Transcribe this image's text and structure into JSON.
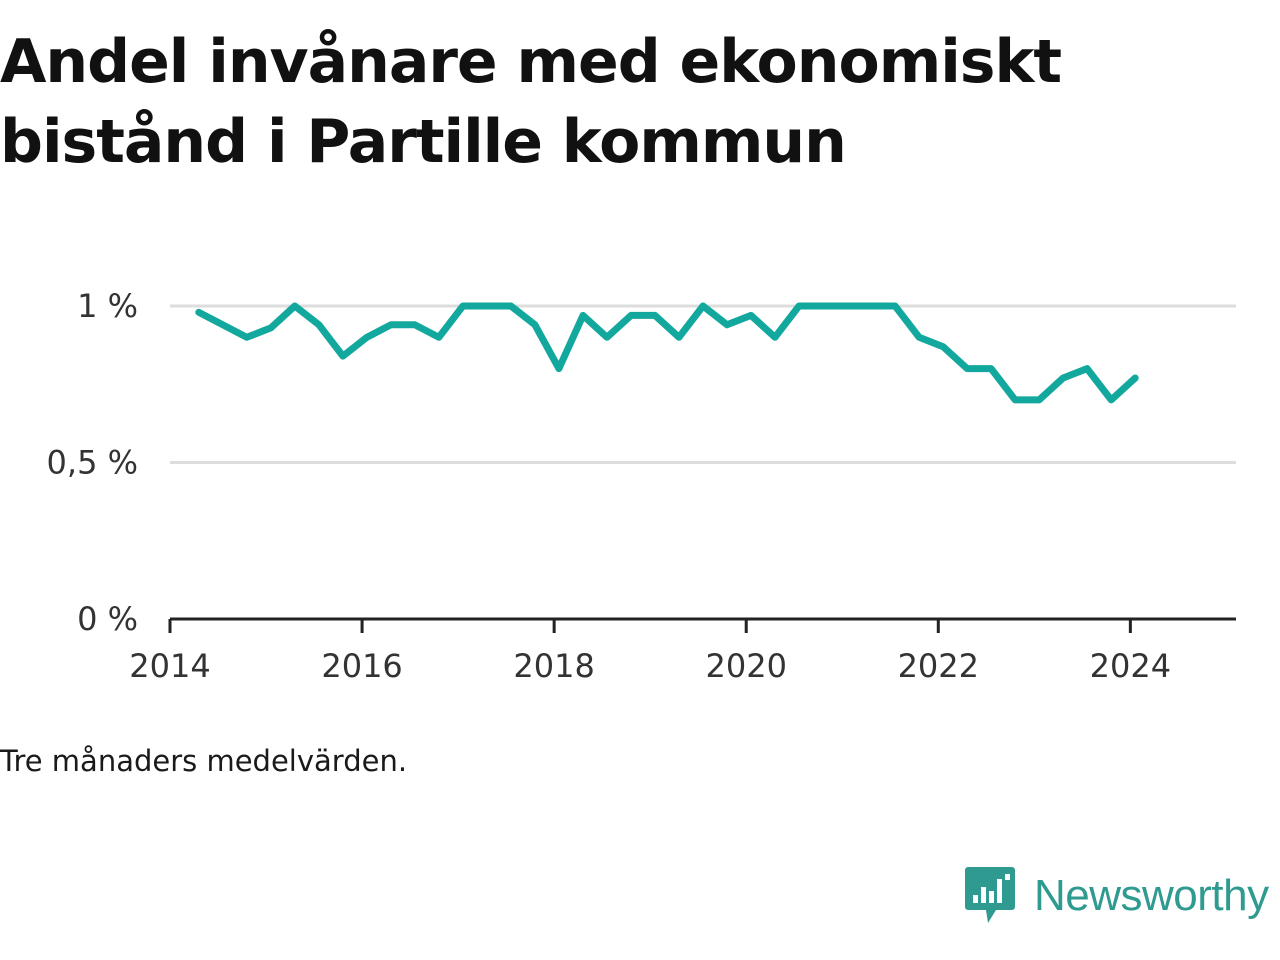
{
  "title": "Andel invånare med ekonomiskt bistånd i Partille kommun",
  "note": "Tre månaders medelvärden.",
  "brand": {
    "name": "Newsworthy",
    "icon": "newsworthy-logo-icon"
  },
  "colors": {
    "line": "#13a89e",
    "grid": "#dddddd",
    "axis": "#222222",
    "brand": "#2f9a8f"
  },
  "chart_data": {
    "type": "line",
    "title": "Andel invånare med ekonomiskt bistånd i Partille kommun",
    "xlabel": "",
    "ylabel": "",
    "ylim": [
      0,
      1.0
    ],
    "xlim": [
      2014,
      2025.1
    ],
    "yticks": [
      0,
      0.5,
      1
    ],
    "ytick_labels": [
      "0 %",
      "0,5 %",
      "1 %"
    ],
    "xticks": [
      2014,
      2016,
      2018,
      2020,
      2022,
      2024
    ],
    "xtick_labels": [
      "2014",
      "2016",
      "2018",
      "2020",
      "2022",
      "2024"
    ],
    "grid": true,
    "series": [
      {
        "x": [
          2014.3,
          2014.55,
          2014.8,
          2015.05,
          2015.3,
          2015.55,
          2015.8,
          2016.05,
          2016.3,
          2016.55,
          2016.8,
          2017.05,
          2017.3,
          2017.55,
          2017.8,
          2018.05,
          2018.3,
          2018.55,
          2018.8,
          2019.05,
          2019.3,
          2019.55,
          2019.8,
          2020.05,
          2020.3,
          2020.55,
          2020.8,
          2021.05,
          2021.3,
          2021.55,
          2021.8,
          2022.05,
          2022.3,
          2022.55,
          2022.8,
          2023.05,
          2023.3,
          2023.55,
          2023.8,
          2024.05
        ],
        "values": [
          0.98,
          0.94,
          0.9,
          0.93,
          1.0,
          0.94,
          0.84,
          0.9,
          0.94,
          0.94,
          0.9,
          1.0,
          1.0,
          1.0,
          0.94,
          0.8,
          0.97,
          0.9,
          0.97,
          0.97,
          0.9,
          1.0,
          0.94,
          0.97,
          0.9,
          1.0,
          1.0,
          1.0,
          1.0,
          1.0,
          0.9,
          0.87,
          0.8,
          0.8,
          0.7,
          0.7,
          0.77,
          0.8,
          0.7,
          0.77
        ]
      }
    ]
  }
}
